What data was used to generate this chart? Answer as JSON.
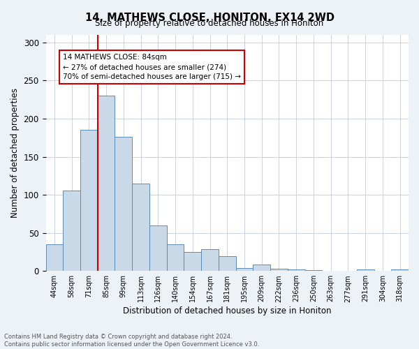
{
  "title": "14, MATHEWS CLOSE, HONITON, EX14 2WD",
  "subtitle": "Size of property relative to detached houses in Honiton",
  "xlabel": "Distribution of detached houses by size in Honiton",
  "ylabel": "Number of detached properties",
  "bar_labels": [
    "44sqm",
    "58sqm",
    "71sqm",
    "85sqm",
    "99sqm",
    "113sqm",
    "126sqm",
    "140sqm",
    "154sqm",
    "167sqm",
    "181sqm",
    "195sqm",
    "209sqm",
    "222sqm",
    "236sqm",
    "250sqm",
    "263sqm",
    "277sqm",
    "291sqm",
    "304sqm",
    "318sqm"
  ],
  "bar_values": [
    35,
    106,
    185,
    230,
    176,
    115,
    60,
    35,
    25,
    29,
    19,
    4,
    8,
    3,
    2,
    1,
    0,
    0,
    2,
    0,
    2
  ],
  "bar_color": "#c9d9e8",
  "bar_edge_color": "#5b8db8",
  "bar_width": 1.0,
  "vline_x": 2.5,
  "vline_color": "#cc0000",
  "annotation_text": "14 MATHEWS CLOSE: 84sqm\n← 27% of detached houses are smaller (274)\n70% of semi-detached houses are larger (715) →",
  "annotation_box_color": "#ffffff",
  "annotation_box_edge": "#cc0000",
  "ylim": [
    0,
    310
  ],
  "yticks": [
    0,
    50,
    100,
    150,
    200,
    250,
    300
  ],
  "bg_color": "#edf2f7",
  "plot_bg_color": "#ffffff",
  "footer_line1": "Contains HM Land Registry data © Crown copyright and database right 2024.",
  "footer_line2": "Contains public sector information licensed under the Open Government Licence v3.0."
}
